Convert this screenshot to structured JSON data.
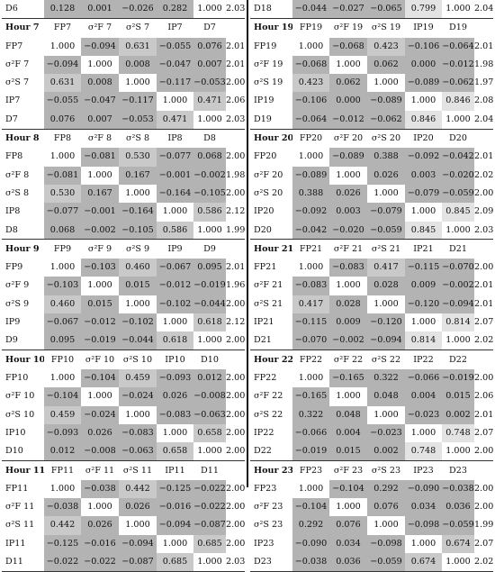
{
  "top": {
    "left": {
      "label": "D6",
      "values": [
        "0.128",
        "0.001",
        "−0.026",
        "0.282",
        "1.000",
        "2.03"
      ]
    },
    "right": {
      "label": "D18",
      "values": [
        "−0.044",
        "−0.027",
        "−0.065",
        "0.799",
        "1.000",
        "2.04"
      ]
    }
  },
  "blocks": [
    {
      "side": "left",
      "hour": "Hour 7",
      "cols": [
        "FP7",
        "σ²F 7",
        "σ²S 7",
        "IP7",
        "D7"
      ],
      "rows": [
        {
          "label": "FP7",
          "values": [
            "1.000",
            "−0.094",
            "0.631",
            "−0.055",
            "0.076",
            "2.01"
          ]
        },
        {
          "label": "σ²F 7",
          "values": [
            "−0.094",
            "1.000",
            "0.008",
            "−0.047",
            "0.007",
            "2.01"
          ]
        },
        {
          "label": "σ²S 7",
          "values": [
            "0.631",
            "0.008",
            "1.000",
            "−0.117",
            "−0.053",
            "2.00"
          ]
        },
        {
          "label": "IP7",
          "values": [
            "−0.055",
            "−0.047",
            "−0.117",
            "1.000",
            "0.471",
            "2.06"
          ]
        },
        {
          "label": "D7",
          "values": [
            "0.076",
            "0.007",
            "−0.053",
            "0.471",
            "1.000",
            "2.03"
          ]
        }
      ]
    },
    {
      "side": "right",
      "hour": "Hour 19",
      "cols": [
        "FP19",
        "σ²F 19",
        "σ²S 19",
        "IP19",
        "D19"
      ],
      "rows": [
        {
          "label": "FP19",
          "values": [
            "1.000",
            "−0.068",
            "0.423",
            "−0.106",
            "−0.064",
            "2.01"
          ]
        },
        {
          "label": "σ²F 19",
          "values": [
            "−0.068",
            "1.000",
            "0.062",
            "0.000",
            "−0.012",
            "1.98"
          ]
        },
        {
          "label": "σ²S 19",
          "values": [
            "0.423",
            "0.062",
            "1.000",
            "−0.089",
            "−0.062",
            "1.97"
          ]
        },
        {
          "label": "IP19",
          "values": [
            "−0.106",
            "0.000",
            "−0.089",
            "1.000",
            "0.846",
            "2.08"
          ]
        },
        {
          "label": "D19",
          "values": [
            "−0.064",
            "−0.012",
            "−0.062",
            "0.846",
            "1.000",
            "2.04"
          ]
        }
      ]
    },
    {
      "side": "left",
      "hour": "Hour 8",
      "cols": [
        "FP8",
        "σ²F 8",
        "σ²S 8",
        "IP8",
        "D8"
      ],
      "rows": [
        {
          "label": "FP8",
          "values": [
            "1.000",
            "−0.081",
            "0.530",
            "−0.077",
            "0.068",
            "2.00"
          ]
        },
        {
          "label": "σ²F 8",
          "values": [
            "−0.081",
            "1.000",
            "0.167",
            "−0.001",
            "−0.002",
            "1.98"
          ]
        },
        {
          "label": "σ²S 8",
          "values": [
            "0.530",
            "0.167",
            "1.000",
            "−0.164",
            "−0.105",
            "2.00"
          ]
        },
        {
          "label": "IP8",
          "values": [
            "−0.077",
            "−0.001",
            "−0.164",
            "1.000",
            "0.586",
            "2.12"
          ]
        },
        {
          "label": "D8",
          "values": [
            "0.068",
            "−0.002",
            "−0.105",
            "0.586",
            "1.000",
            "1.99"
          ]
        }
      ]
    },
    {
      "side": "right",
      "hour": "Hour 20",
      "cols": [
        "FP20",
        "σ²F 20",
        "σ²S 20",
        "IP20",
        "D20"
      ],
      "rows": [
        {
          "label": "FP20",
          "values": [
            "1.000",
            "−0.089",
            "0.388",
            "−0.092",
            "−0.042",
            "2.01"
          ]
        },
        {
          "label": "σ²F 20",
          "values": [
            "−0.089",
            "1.000",
            "0.026",
            "0.003",
            "−0.020",
            "2.02"
          ]
        },
        {
          "label": "σ²S 20",
          "values": [
            "0.388",
            "0.026",
            "1.000",
            "−0.079",
            "−0.059",
            "2.00"
          ]
        },
        {
          "label": "IP20",
          "values": [
            "−0.092",
            "0.003",
            "−0.079",
            "1.000",
            "0.845",
            "2.09"
          ]
        },
        {
          "label": "D20",
          "values": [
            "−0.042",
            "−0.020",
            "−0.059",
            "0.845",
            "1.000",
            "2.03"
          ]
        }
      ]
    },
    {
      "side": "left",
      "hour": "Hour 9",
      "cols": [
        "FP9",
        "σ²F 9",
        "σ²S 9",
        "IP9",
        "D9"
      ],
      "rows": [
        {
          "label": "FP9",
          "values": [
            "1.000",
            "−0.103",
            "0.460",
            "−0.067",
            "0.095",
            "2.01"
          ]
        },
        {
          "label": "σ²F 9",
          "values": [
            "−0.103",
            "1.000",
            "0.015",
            "−0.012",
            "−0.019",
            "1.96"
          ]
        },
        {
          "label": "σ²S 9",
          "values": [
            "0.460",
            "0.015",
            "1.000",
            "−0.102",
            "−0.044",
            "2.00"
          ]
        },
        {
          "label": "IP9",
          "values": [
            "−0.067",
            "−0.012",
            "−0.102",
            "1.000",
            "0.618",
            "2.12"
          ]
        },
        {
          "label": "D9",
          "values": [
            "0.095",
            "−0.019",
            "−0.044",
            "0.618",
            "1.000",
            "2.00"
          ]
        }
      ]
    },
    {
      "side": "right",
      "hour": "Hour 21",
      "cols": [
        "FP21",
        "σ²F 21",
        "σ²S 21",
        "IP21",
        "D21"
      ],
      "rows": [
        {
          "label": "FP21",
          "values": [
            "1.000",
            "−0.083",
            "0.417",
            "−0.115",
            "−0.070",
            "2.00"
          ]
        },
        {
          "label": "σ²F 21",
          "values": [
            "−0.083",
            "1.000",
            "0.028",
            "0.009",
            "−0.002",
            "2.01"
          ]
        },
        {
          "label": "σ²S 21",
          "values": [
            "0.417",
            "0.028",
            "1.000",
            "−0.120",
            "−0.094",
            "2.01"
          ]
        },
        {
          "label": "IP21",
          "values": [
            "−0.115",
            "0.009",
            "−0.120",
            "1.000",
            "0.814",
            "2.07"
          ]
        },
        {
          "label": "D21",
          "values": [
            "−0.070",
            "−0.002",
            "−0.094",
            "0.814",
            "1.000",
            "2.02"
          ]
        }
      ]
    },
    {
      "side": "left",
      "hour": "Hour 10",
      "cols": [
        "FP10",
        "σ²F 10",
        "σ²S 10",
        "IP10",
        "D10"
      ],
      "rows": [
        {
          "label": "FP10",
          "values": [
            "1.000",
            "−0.104",
            "0.459",
            "−0.093",
            "0.012",
            "2.00"
          ]
        },
        {
          "label": "σ²F 10",
          "values": [
            "−0.104",
            "1.000",
            "−0.024",
            "0.026",
            "−0.008",
            "2.00"
          ]
        },
        {
          "label": "σ²S 10",
          "values": [
            "0.459",
            "−0.024",
            "1.000",
            "−0.083",
            "−0.063",
            "2.00"
          ]
        },
        {
          "label": "IP10",
          "values": [
            "−0.093",
            "0.026",
            "−0.083",
            "1.000",
            "0.658",
            "2.00"
          ]
        },
        {
          "label": "D10",
          "values": [
            "0.012",
            "−0.008",
            "−0.063",
            "0.658",
            "1.000",
            "2.00"
          ]
        }
      ]
    },
    {
      "side": "right",
      "hour": "Hour 22",
      "cols": [
        "FP22",
        "σ²F 22",
        "σ²S 22",
        "IP22",
        "D22"
      ],
      "rows": [
        {
          "label": "FP22",
          "values": [
            "1.000",
            "−0.165",
            "0.322",
            "−0.066",
            "−0.019",
            "2.00"
          ]
        },
        {
          "label": "σ²F 22",
          "values": [
            "−0.165",
            "1.000",
            "0.048",
            "0.004",
            "0.015",
            "2.06"
          ]
        },
        {
          "label": "σ²S 22",
          "values": [
            "0.322",
            "0.048",
            "1.000",
            "−0.023",
            "0.002",
            "2.01"
          ]
        },
        {
          "label": "IP22",
          "values": [
            "−0.066",
            "0.004",
            "−0.023",
            "1.000",
            "0.748",
            "2.07"
          ]
        },
        {
          "label": "D22",
          "values": [
            "−0.019",
            "0.015",
            "0.002",
            "0.748",
            "1.000",
            "2.00"
          ]
        }
      ]
    },
    {
      "side": "left",
      "hour": "Hour 11",
      "cols": [
        "FP11",
        "σ²F 11",
        "σ²S 11",
        "IP11",
        "D11"
      ],
      "rows": [
        {
          "label": "FP11",
          "values": [
            "1.000",
            "−0.038",
            "0.442",
            "−0.125",
            "−0.022",
            "2.00"
          ]
        },
        {
          "label": "σ²F 11",
          "values": [
            "−0.038",
            "1.000",
            "0.026",
            "−0.016",
            "−0.022",
            "2.00"
          ]
        },
        {
          "label": "σ²S 11",
          "values": [
            "0.442",
            "0.026",
            "1.000",
            "−0.094",
            "−0.087",
            "2.00"
          ]
        },
        {
          "label": "IP11",
          "values": [
            "−0.125",
            "−0.016",
            "−0.094",
            "1.000",
            "0.685",
            "2.00"
          ]
        },
        {
          "label": "D11",
          "values": [
            "−0.022",
            "−0.022",
            "−0.087",
            "0.685",
            "1.000",
            "2.03"
          ]
        }
      ]
    },
    {
      "side": "right",
      "hour": "Hour 23",
      "cols": [
        "FP23",
        "σ²F 23",
        "σ²S 23",
        "IP23",
        "D23"
      ],
      "rows": [
        {
          "label": "FP23",
          "values": [
            "1.000",
            "−0.104",
            "0.292",
            "−0.090",
            "−0.038",
            "2.00"
          ]
        },
        {
          "label": "σ²F 23",
          "values": [
            "−0.104",
            "1.000",
            "0.076",
            "0.034",
            "0.036",
            "2.00"
          ]
        },
        {
          "label": "σ²S 23",
          "values": [
            "0.292",
            "0.076",
            "1.000",
            "−0.098",
            "−0.059",
            "1.99"
          ]
        },
        {
          "label": "IP23",
          "values": [
            "−0.090",
            "0.034",
            "−0.098",
            "1.000",
            "0.674",
            "2.07"
          ]
        },
        {
          "label": "D23",
          "values": [
            "−0.038",
            "0.036",
            "−0.059",
            "0.674",
            "1.000",
            "2.02"
          ]
        }
      ]
    }
  ]
}
